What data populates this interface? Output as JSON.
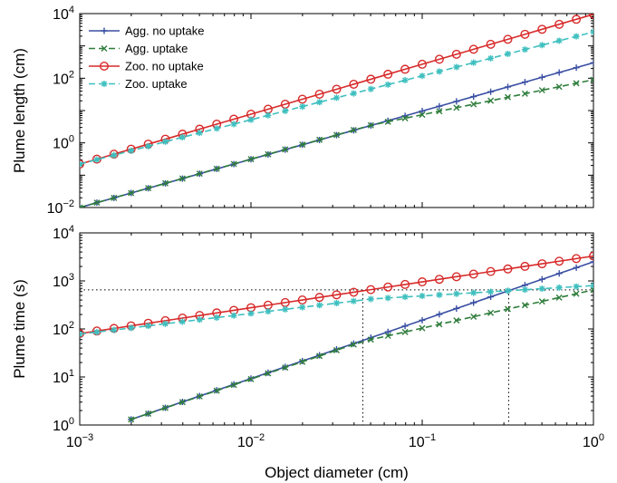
{
  "chart_data": [
    {
      "type": "line",
      "panel": "top",
      "title": "",
      "xlabel": "",
      "ylabel": "Plume length (cm)",
      "xscale": "log",
      "yscale": "log",
      "xlim": [
        0.001,
        1
      ],
      "ylim": [
        0.01,
        10000
      ],
      "xticks": [
        {
          "base": "10",
          "exp": "−3",
          "value": 0.001
        },
        {
          "base": "10",
          "exp": "−2",
          "value": 0.01
        },
        {
          "base": "10",
          "exp": "−1",
          "value": 0.1
        },
        {
          "base": "10",
          "exp": "0",
          "value": 1
        }
      ],
      "yticks": [
        {
          "base": "10",
          "exp": "−2",
          "value": 0.01
        },
        {
          "base": "10",
          "exp": "0",
          "value": 1
        },
        {
          "base": "10",
          "exp": "2",
          "value": 100
        },
        {
          "base": "10",
          "exp": "4",
          "value": 10000
        }
      ],
      "tick_labels_visible_x": false,
      "grid": false,
      "legend": "top-left",
      "x_range_points": 31,
      "series": [
        {
          "name": "Agg. no uptake",
          "color": "#3a4fa3",
          "dash": "solid",
          "marker": "plus",
          "x": [
            0.001,
            1
          ],
          "y": [
            0.01,
            300
          ],
          "note_values": "log-linear power law",
          "kink_x": null
        },
        {
          "name": "Agg. uptake",
          "color": "#2f7d3c",
          "dash": "dashed",
          "marker": "x",
          "x": [
            0.001,
            0.05,
            1
          ],
          "y": [
            0.01,
            3.5,
            90
          ]
        },
        {
          "name": "Zoo. no uptake",
          "color": "#d82a2a",
          "dash": "solid",
          "marker": "circle",
          "x": [
            0.001,
            1
          ],
          "y": [
            0.22,
            9500
          ]
        },
        {
          "name": "Zoo. uptake",
          "color": "#3fbfbf",
          "dash": "dashed",
          "marker": "star",
          "x": [
            0.001,
            0.004,
            1
          ],
          "y": [
            0.22,
            1.5,
            2700
          ]
        }
      ]
    },
    {
      "type": "line",
      "panel": "bottom",
      "title": "",
      "xlabel": "Object diameter (cm)",
      "ylabel": "Plume time (s)",
      "xscale": "log",
      "yscale": "log",
      "xlim": [
        0.001,
        1
      ],
      "ylim": [
        1,
        10000
      ],
      "xticks": [
        {
          "base": "10",
          "exp": "−3",
          "value": 0.001
        },
        {
          "base": "10",
          "exp": "−2",
          "value": 0.01
        },
        {
          "base": "10",
          "exp": "−1",
          "value": 0.1
        },
        {
          "base": "10",
          "exp": "0",
          "value": 1
        }
      ],
      "yticks": [
        {
          "base": "10",
          "exp": "0",
          "value": 1
        },
        {
          "base": "10",
          "exp": "1",
          "value": 10
        },
        {
          "base": "10",
          "exp": "2",
          "value": 100
        },
        {
          "base": "10",
          "exp": "3",
          "value": 1000
        },
        {
          "base": "10",
          "exp": "4",
          "value": 10000
        }
      ],
      "grid": false,
      "reference_lines": {
        "hline_y": 650,
        "vlines_x": [
          0.045,
          0.32
        ]
      },
      "series": [
        {
          "name": "Agg. no uptake",
          "color": "#3a4fa3",
          "dash": "solid",
          "marker": "plus",
          "x": [
            0.0016,
            1
          ],
          "y": [
            1,
            2500
          ]
        },
        {
          "name": "Agg. uptake",
          "color": "#2f7d3c",
          "dash": "dashed",
          "marker": "x",
          "x": [
            0.0016,
            0.045,
            1
          ],
          "y": [
            1,
            55,
            650
          ]
        },
        {
          "name": "Zoo. no uptake",
          "color": "#d82a2a",
          "dash": "solid",
          "marker": "circle",
          "x": [
            0.001,
            1
          ],
          "y": [
            80,
            3300
          ]
        },
        {
          "name": "Zoo. uptake",
          "color": "#3fbfbf",
          "dash": "dashed",
          "marker": "star",
          "x": [
            0.001,
            0.05,
            1
          ],
          "y": [
            78,
            420,
            800
          ]
        }
      ]
    }
  ]
}
